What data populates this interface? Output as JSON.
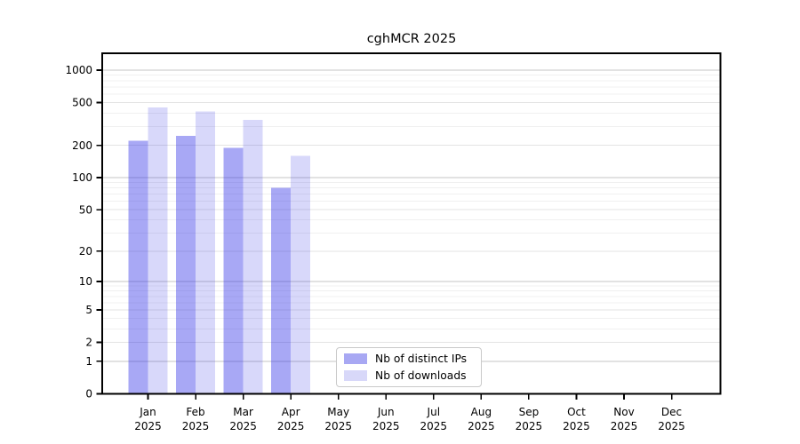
{
  "chart_data": {
    "type": "bar",
    "title": "cghMCR 2025",
    "categories": [
      "Jan",
      "Feb",
      "Mar",
      "Apr",
      "May",
      "Jun",
      "Jul",
      "Aug",
      "Sep",
      "Oct",
      "Nov",
      "Dec"
    ],
    "tick_year": "2025",
    "series": [
      {
        "name": "Nb of distinct IPs",
        "swatch": "#a8a8f3",
        "fill": "#2626e6",
        "fill_opacity": 0.4,
        "values": [
          220,
          245,
          190,
          80,
          0,
          0,
          0,
          0,
          0,
          0,
          0,
          0
        ]
      },
      {
        "name": "Nb of downloads",
        "swatch": "#d8d8f9",
        "fill": "#2626e6",
        "fill_opacity": 0.18,
        "values": [
          450,
          415,
          345,
          160,
          0,
          0,
          0,
          0,
          0,
          0,
          0,
          0
        ]
      }
    ],
    "yticks": [
      0,
      1,
      2,
      5,
      10,
      20,
      50,
      100,
      200,
      500,
      1000
    ],
    "ylim": [
      0,
      1000
    ],
    "yscale": "log10(1+x)",
    "grid": "on",
    "legend_position": "lower-center-inside",
    "colors": {
      "axis": "#000000",
      "tick_text": "#000000",
      "grid_decade": "#c6c6c6",
      "grid_labeled": "#e3e3e3",
      "grid_minor": "#f0f0f0",
      "background": "#ffffff"
    }
  }
}
